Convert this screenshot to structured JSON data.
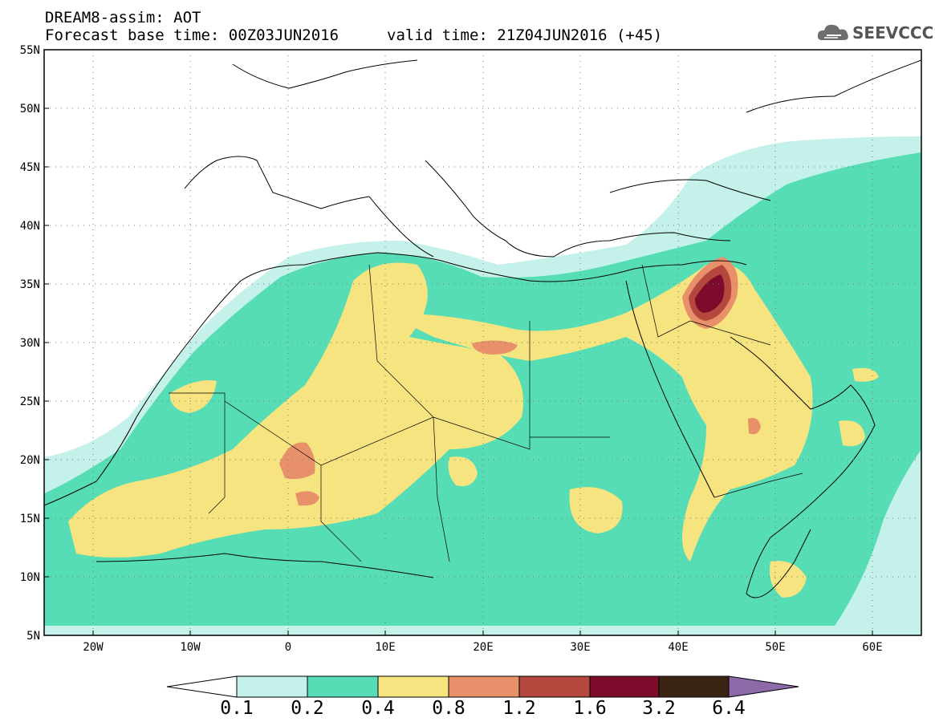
{
  "title": {
    "line1": "DREAM8-assim: AOT",
    "line2": "Forecast base time: 00Z03JUN2016",
    "valid": "valid time: 21Z04JUN2016 (+45)"
  },
  "logo": {
    "text": "SEEVCCC",
    "icon": "cloud-icon"
  },
  "axes": {
    "lat_ticks": [
      "55N",
      "50N",
      "45N",
      "40N",
      "35N",
      "30N",
      "25N",
      "20N",
      "15N",
      "10N",
      "5N"
    ],
    "lon_ticks": [
      "20W",
      "10W",
      "0",
      "10E",
      "20E",
      "30E",
      "40E",
      "50E",
      "60E"
    ],
    "lat_range": [
      5,
      55
    ],
    "lon_range": [
      -25,
      65
    ]
  },
  "colorbar": {
    "labels": [
      "0.1",
      "0.2",
      "0.4",
      "0.8",
      "1.2",
      "1.6",
      "3.2",
      "6.4"
    ],
    "colors": [
      "#ffffff",
      "#c4f1e9",
      "#57ddb5",
      "#f5e47f",
      "#e8906a",
      "#b4483e",
      "#7c0b2c",
      "#3b2314",
      "#8c6aa8"
    ]
  }
}
